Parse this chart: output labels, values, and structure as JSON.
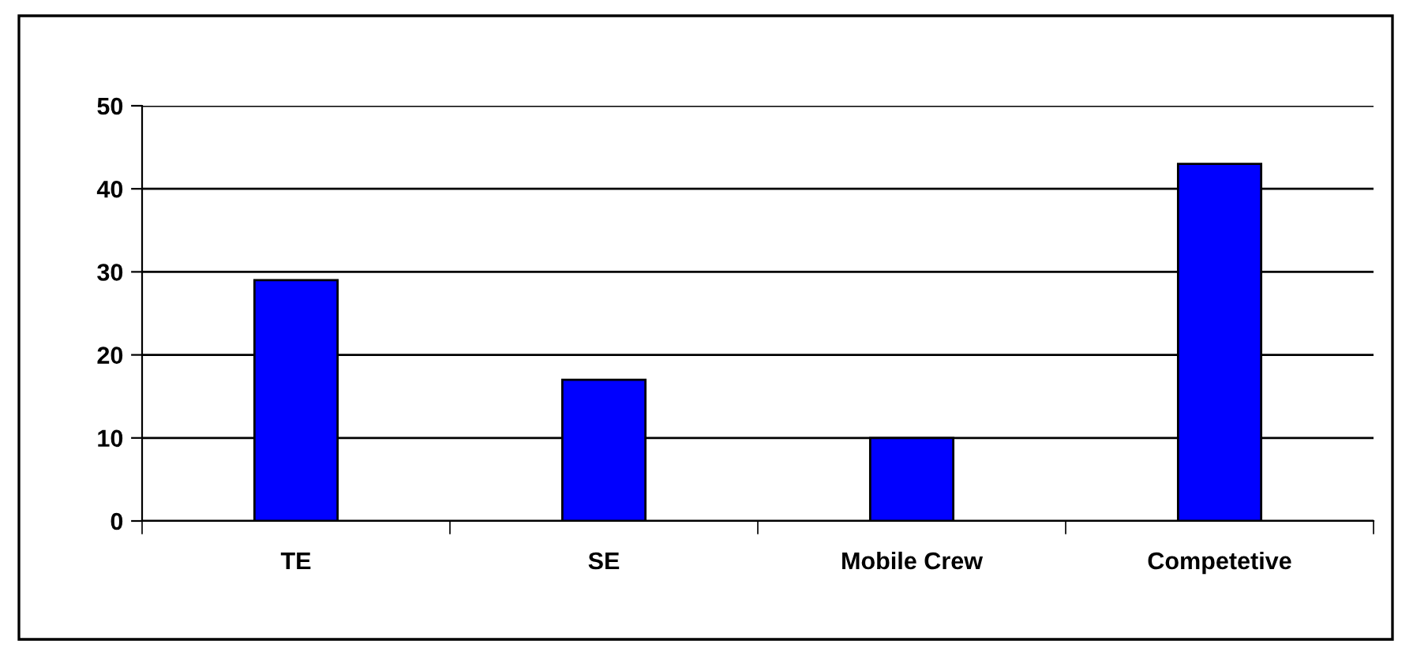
{
  "chart_data": {
    "type": "bar",
    "categories": [
      "TE",
      "SE",
      "Mobile Crew",
      "Competetive"
    ],
    "values": [
      29,
      17,
      10,
      43
    ],
    "color": "#0000ff",
    "ylim": [
      0,
      50
    ],
    "yticks": [
      0,
      10,
      20,
      30,
      40,
      50
    ],
    "grid": "y"
  }
}
